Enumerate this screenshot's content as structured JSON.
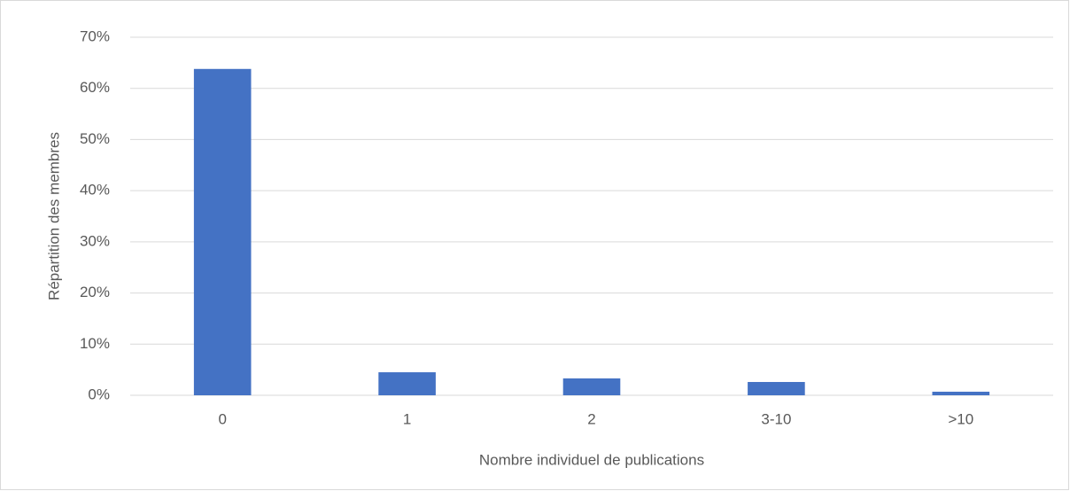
{
  "chart_data": {
    "type": "bar",
    "x_label": "Nombre individuel de publications",
    "y_label": "Répartition des membres",
    "categories": [
      "0",
      "1",
      "2",
      "3-10",
      ">10"
    ],
    "values": [
      63.8,
      4.5,
      3.3,
      2.6,
      0.7
    ],
    "color": "#4472c4",
    "ylim": [
      0,
      70
    ],
    "yticks": [
      {
        "value": 0,
        "label": "0%"
      },
      {
        "value": 10,
        "label": "10%"
      },
      {
        "value": 20,
        "label": "20%"
      },
      {
        "value": 30,
        "label": "30%"
      },
      {
        "value": 40,
        "label": "40%"
      },
      {
        "value": 50,
        "label": "50%"
      },
      {
        "value": 60,
        "label": "60%"
      },
      {
        "value": 70,
        "label": "70%"
      }
    ],
    "grid": true
  }
}
